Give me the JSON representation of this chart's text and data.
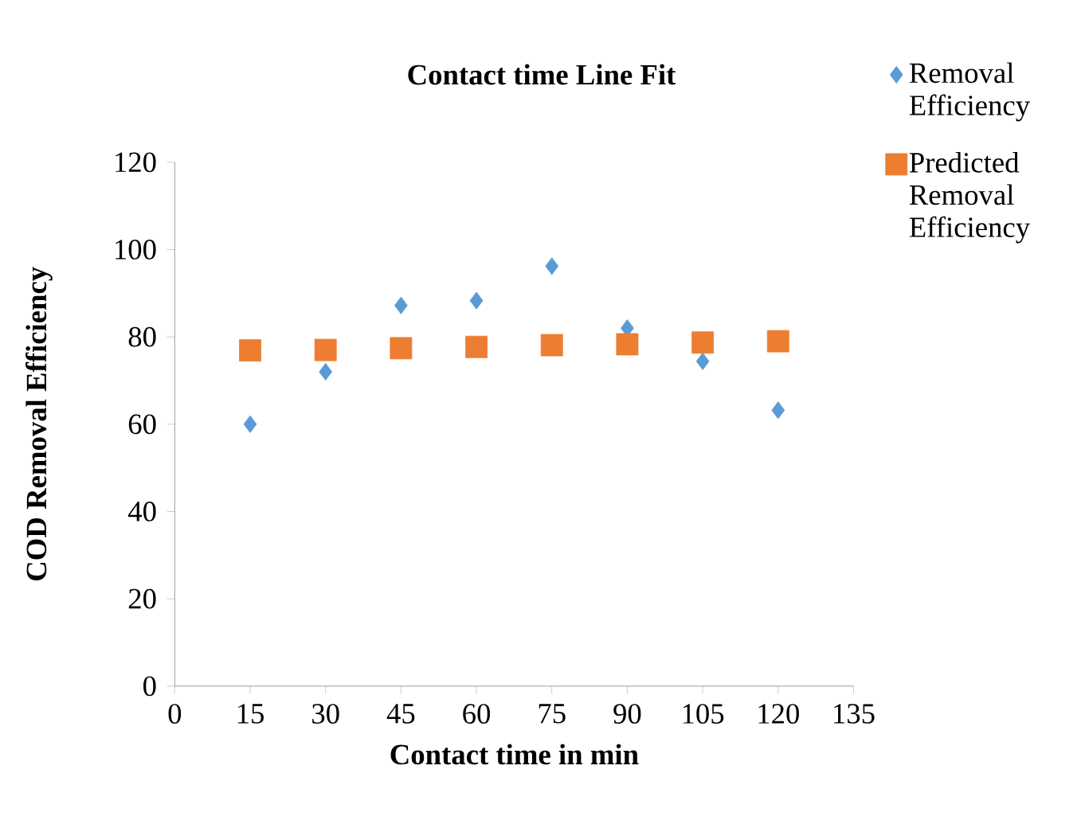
{
  "chart_data": {
    "type": "scatter",
    "title": "Contact time Line Fit",
    "xlabel": "Contact time in min",
    "ylabel": "COD Removal Efficiency",
    "x": [
      15,
      30,
      45,
      60,
      75,
      90,
      105,
      120
    ],
    "series": [
      {
        "name": "Removal Efficiency",
        "color": "#5b9bd5",
        "marker": "diamond",
        "values": [
          60,
          72,
          87.2,
          88.3,
          96.2,
          82,
          74.4,
          63.2
        ]
      },
      {
        "name": "Predicted Removal Efficiency",
        "color": "#ed7d31",
        "marker": "square",
        "values": [
          76.9,
          77,
          77.4,
          77.7,
          78.1,
          78.3,
          78.7,
          79
        ]
      }
    ],
    "xlim": [
      0,
      135
    ],
    "ylim": [
      0,
      120
    ],
    "xticks": [
      0,
      15,
      30,
      45,
      60,
      75,
      90,
      105,
      120,
      135
    ],
    "yticks": [
      0,
      20,
      40,
      60,
      80,
      100,
      120
    ],
    "legend": "top right"
  }
}
